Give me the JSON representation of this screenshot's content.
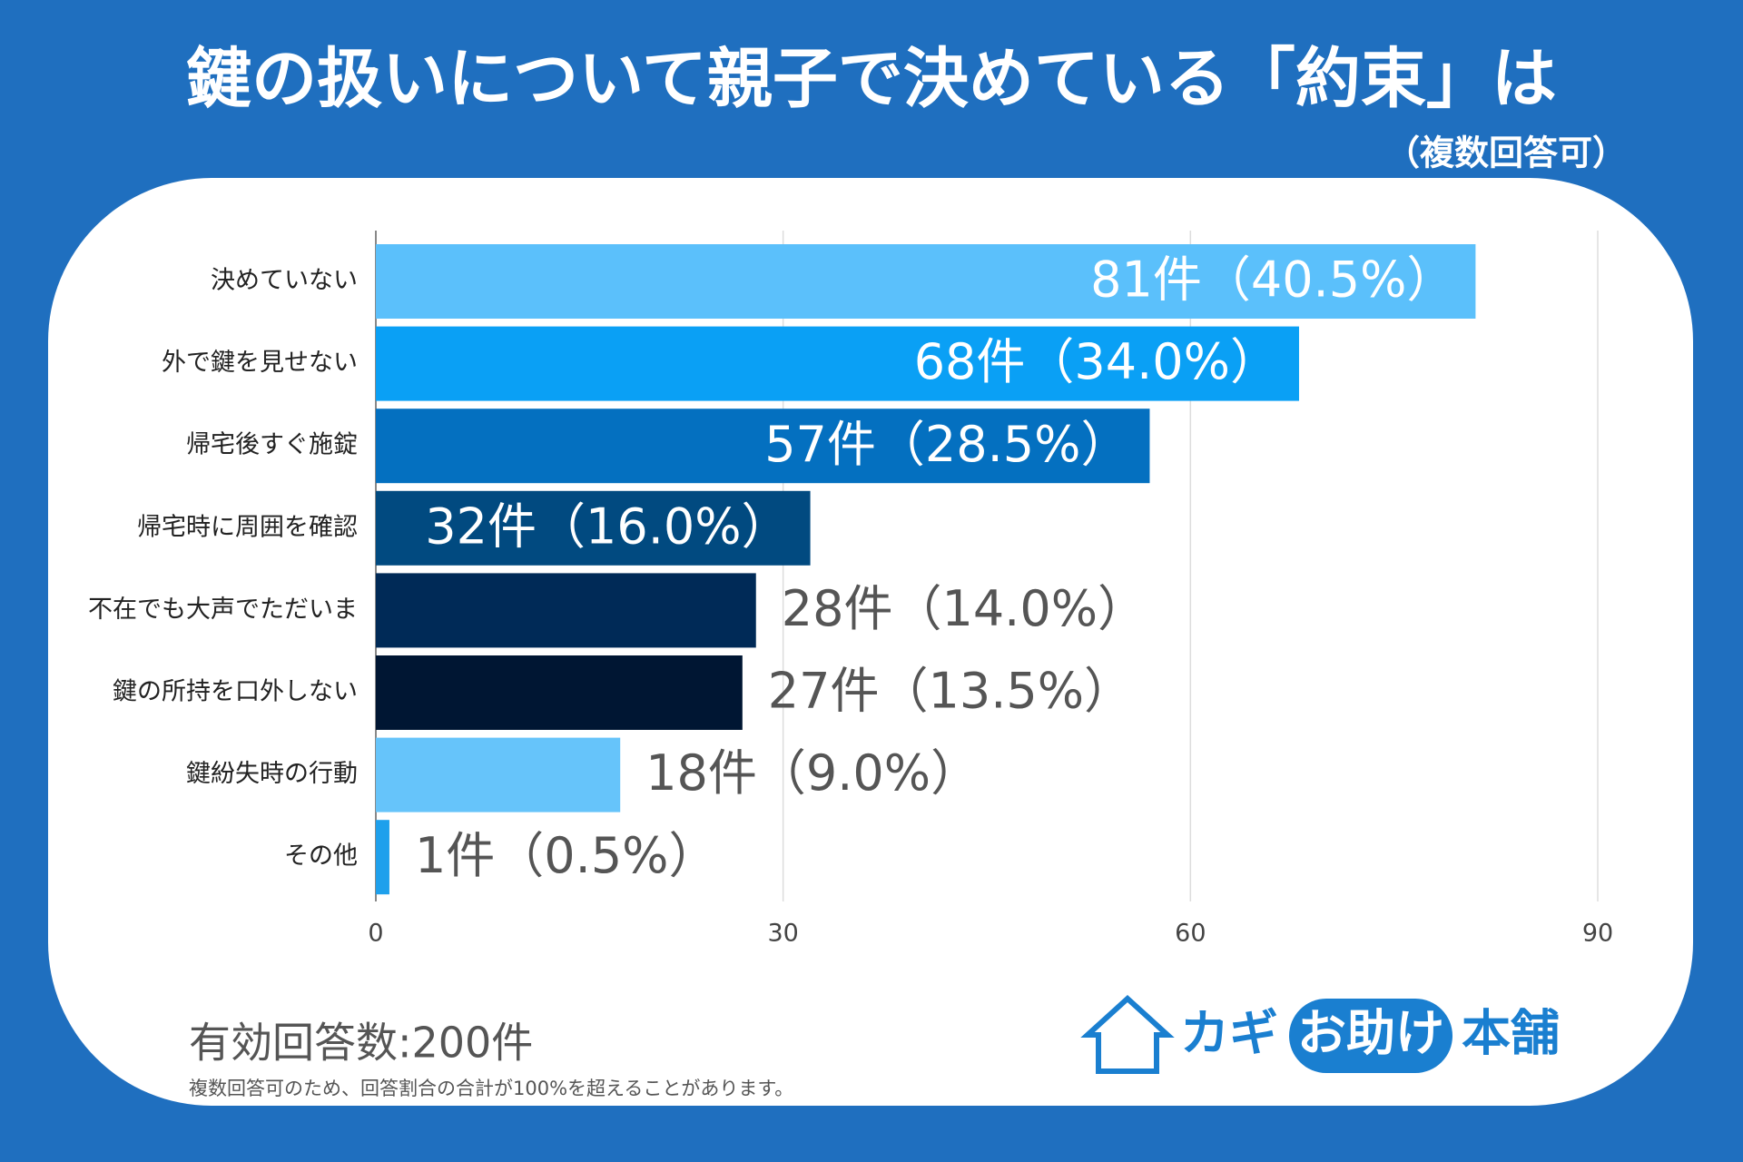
{
  "chart_data": {
    "type": "hbar",
    "title": "鍵の扱いについて親子で決めている「約束」は",
    "subtitle": "（複数回答可）",
    "categories": [
      "決めていない",
      "外で鍵を見せない",
      "帰宅後すぐ施錠",
      "帰宅時に周囲を確認",
      "不在でも大声でただいま",
      "鍵の所持を口外しない",
      "鍵紛失時の行動",
      "その他"
    ],
    "values": [
      81,
      68,
      57,
      32,
      28,
      27,
      18,
      1
    ],
    "value_labels": [
      "81件（40.5%）",
      "68件（34.0%）",
      "57件（28.5%）",
      "32件（16.0%）",
      "28件（14.0%）",
      "27件（13.5%）",
      "18件（9.0%）",
      "1件（0.5%）"
    ],
    "colors": [
      "#5bc0fb",
      "#0aa0f5",
      "#0470c0",
      "#014a80",
      "#002a57",
      "#001633",
      "#66c4fa",
      "#1ea0ec"
    ],
    "xlim": [
      0,
      90
    ],
    "xticks": [
      0,
      30,
      60,
      90
    ],
    "grid": true,
    "footer": "有効回答数:200件",
    "note": "複数回答可のため、回答割合の合計が100%を超えることがあります。"
  },
  "logo": {
    "parts": [
      "カギ",
      "お助け",
      "本舗"
    ]
  }
}
